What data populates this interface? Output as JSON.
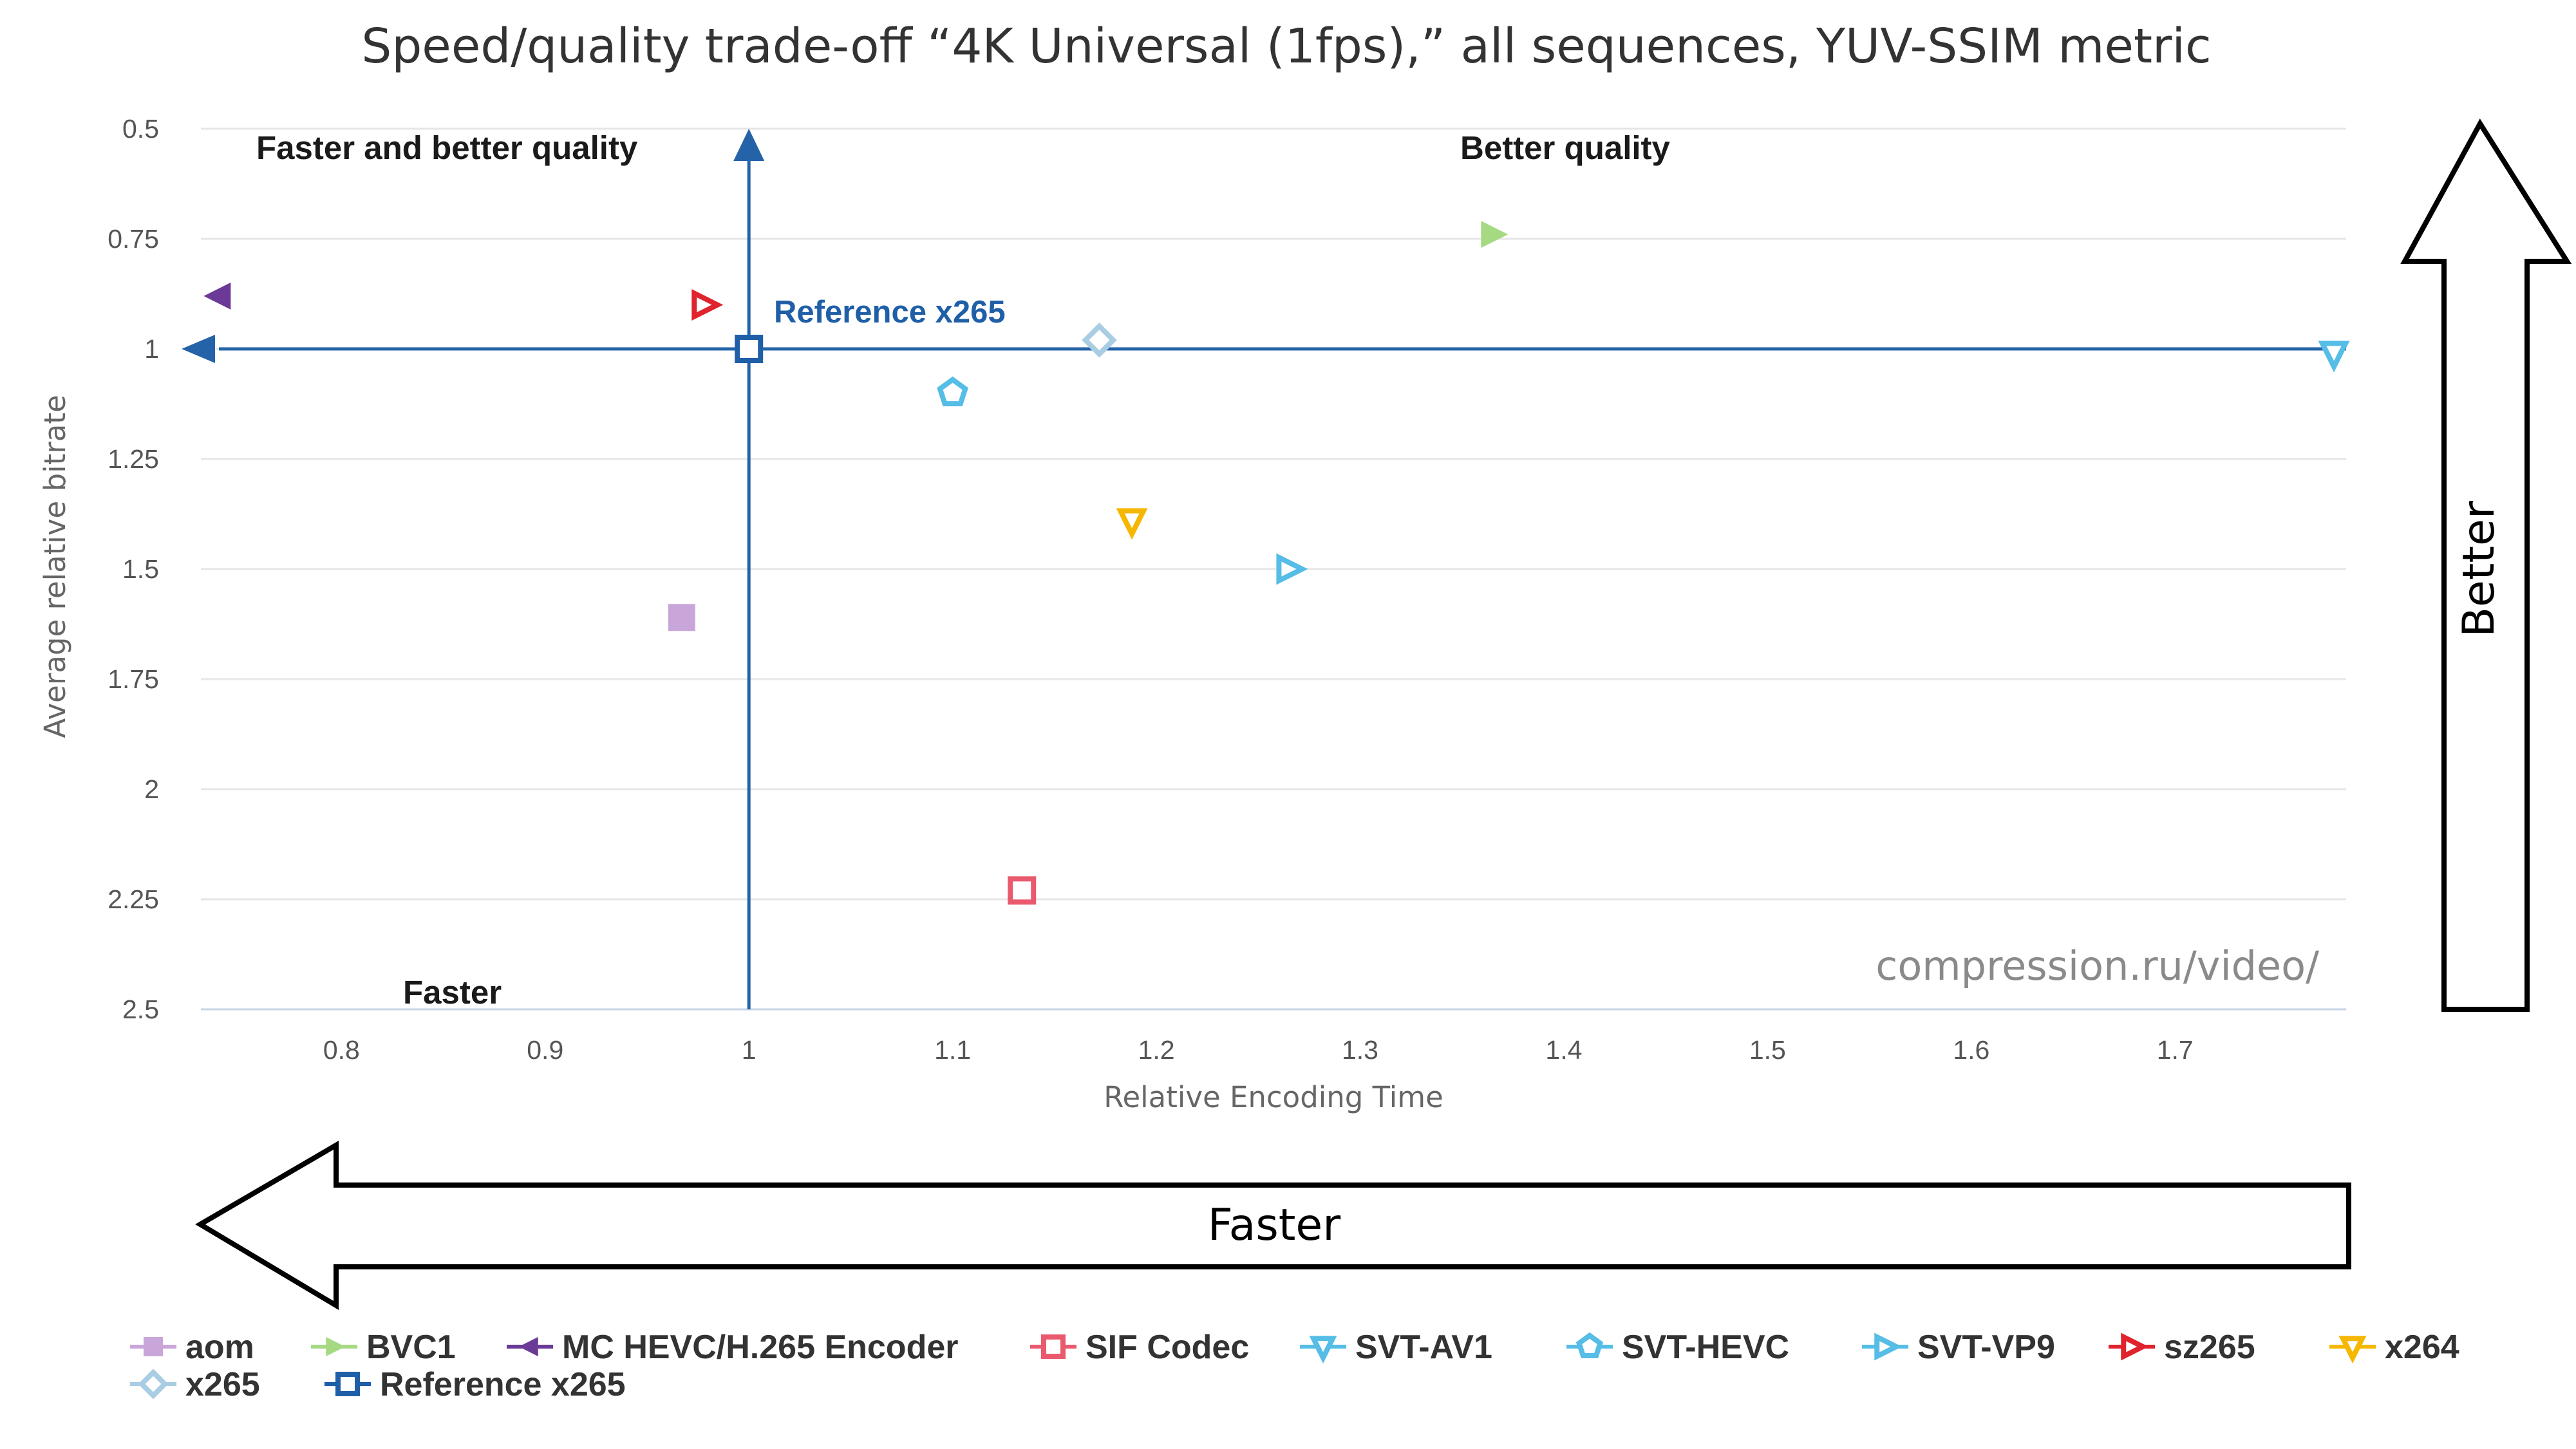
{
  "chart_data": {
    "type": "scatter",
    "title": "Speed/quality trade-off “4K Universal (1fps),” all sequences, YUV-SSIM metric",
    "xlabel": "Relative Encoding Time",
    "ylabel": "Average relative bitrate",
    "xlim": [
      0.731,
      1.784
    ],
    "ylim": [
      0.5,
      2.5
    ],
    "y_reversed": true,
    "x_ticks": [
      "0.8",
      "0.9",
      "1",
      "1.1",
      "1.2",
      "1.3",
      "1.4",
      "1.5",
      "1.6",
      "1.7"
    ],
    "x_tick_values": [
      0.8,
      0.9,
      1.0,
      1.1,
      1.2,
      1.3,
      1.4,
      1.5,
      1.6,
      1.7
    ],
    "y_ticks": [
      "0.5",
      "0.75",
      "1",
      "1.25",
      "1.5",
      "1.75",
      "2",
      "2.25",
      "2.5"
    ],
    "y_tick_values": [
      0.5,
      0.75,
      1.0,
      1.25,
      1.5,
      1.75,
      2.0,
      2.25,
      2.5
    ],
    "grid": "horizontal",
    "legend_position": "bottom",
    "series": [
      {
        "name": "aom",
        "x": 0.967,
        "y": 1.61,
        "marker": "square",
        "filled": true,
        "color": "#c9a6da"
      },
      {
        "name": "BVC1",
        "x": 1.365,
        "y": 0.74,
        "marker": "triangle-right",
        "filled": true,
        "color": "#a6da82"
      },
      {
        "name": "MC HEVC/H.265 Encoder",
        "x": 0.74,
        "y": 0.88,
        "marker": "triangle-left",
        "filled": true,
        "color": "#6a3a96"
      },
      {
        "name": "SIF Codec",
        "x": 1.134,
        "y": 2.23,
        "marker": "square",
        "filled": false,
        "color": "#ea5a6e"
      },
      {
        "name": "SVT-AV1",
        "x": 1.778,
        "y": 1.01,
        "marker": "triangle-down",
        "filled": false,
        "color": "#55bde6"
      },
      {
        "name": "SVT-HEVC",
        "x": 1.1,
        "y": 1.1,
        "marker": "pentagon",
        "filled": false,
        "color": "#55bde6"
      },
      {
        "name": "SVT-VP9",
        "x": 1.265,
        "y": 1.5,
        "marker": "triangle-right",
        "filled": false,
        "color": "#55bde6"
      },
      {
        "name": "sz265",
        "x": 0.978,
        "y": 0.9,
        "marker": "triangle-right",
        "filled": false,
        "color": "#e0232d"
      },
      {
        "name": "x264",
        "x": 1.188,
        "y": 1.39,
        "marker": "triangle-down",
        "filled": false,
        "color": "#f5b700"
      },
      {
        "name": "x265",
        "x": 1.172,
        "y": 0.98,
        "marker": "diamond",
        "filled": false,
        "color": "#a9cde3"
      },
      {
        "name": "Reference x265",
        "x": 1.0,
        "y": 1.0,
        "marker": "square",
        "filled": false,
        "color": "#1f5fa8"
      }
    ],
    "annotations": {
      "top_left": "Faster and better quality",
      "top_right": "Better quality",
      "bottom_left": "Faster",
      "reference_label": "Reference x265",
      "watermark": "compression.ru/video/"
    },
    "big_arrows": {
      "right_label": "Better",
      "bottom_label": "Faster"
    },
    "reference_line_color": "#2563a8"
  }
}
